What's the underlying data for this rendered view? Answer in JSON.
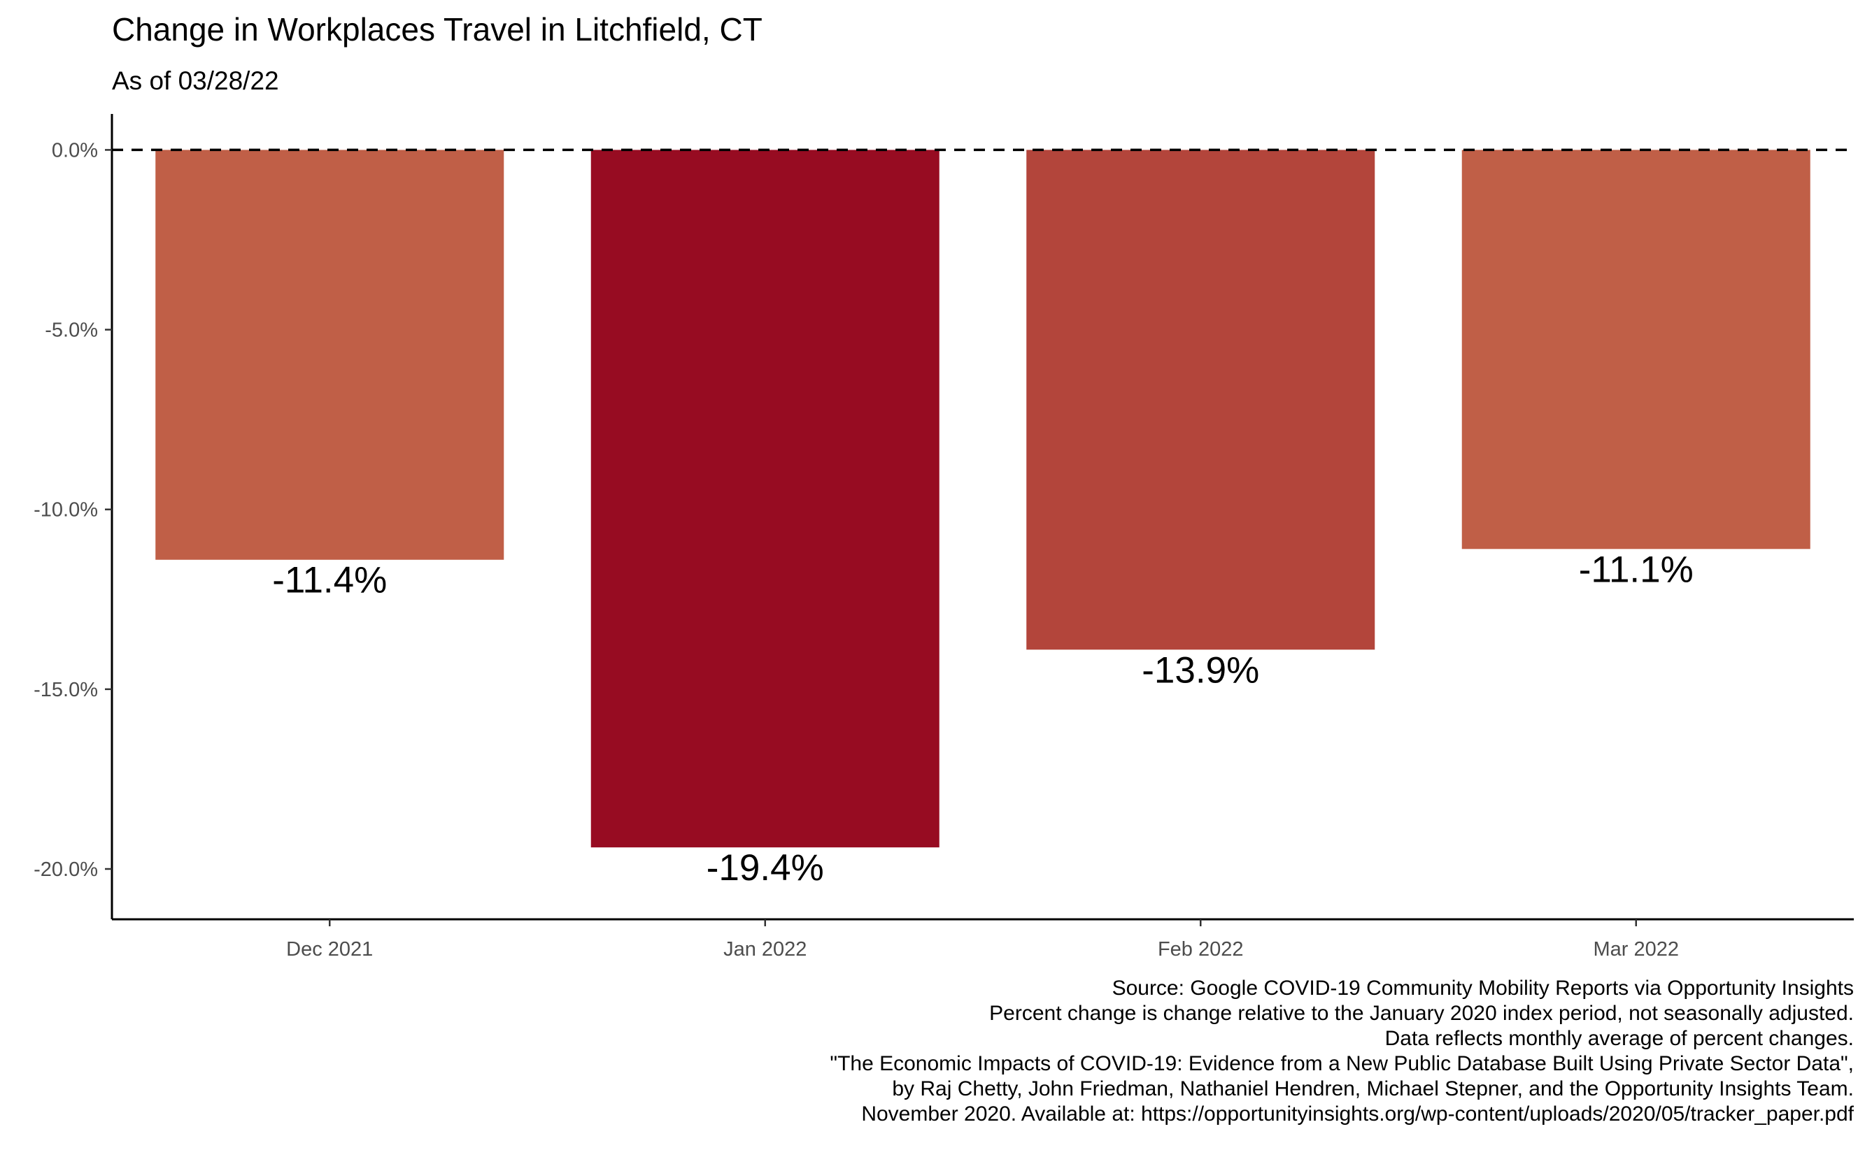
{
  "chart_data": {
    "type": "bar",
    "title": "Change in Workplaces Travel in Litchfield, CT",
    "subtitle": "As of 03/28/22",
    "xlabel": "",
    "ylabel": "",
    "categories": [
      "Dec 2021",
      "Jan 2022",
      "Feb 2022",
      "Mar 2022"
    ],
    "values": [
      -11.4,
      -19.4,
      -13.9,
      -11.1
    ],
    "data_labels": [
      "-11.4%",
      "-19.4%",
      "-13.9%",
      "-11.1%"
    ],
    "bar_colors": [
      "#c05f47",
      "#970c22",
      "#b3453b",
      "#c05f47"
    ],
    "yticks": [
      0,
      -5,
      -10,
      -15,
      -20
    ],
    "ytick_labels": [
      "0.0%",
      "-5.0%",
      "-10.0%",
      "-15.0%",
      "-20.0%"
    ],
    "ylim": [
      -21.4,
      1.0
    ],
    "reference_line": {
      "value": 0,
      "style": "dashed"
    },
    "grid": false,
    "legend": "none",
    "caption": [
      "Source: Google COVID-19 Community Mobility Reports via Opportunity Insights",
      "Percent change is change relative to the January 2020 index period, not seasonally adjusted.",
      "Data reflects monthly average of percent changes.",
      "\"The Economic Impacts of COVID-19: Evidence from a New Public Database Built Using Private Sector Data\",",
      "by Raj Chetty, John Friedman, Nathaniel Hendren, Michael Stepner, and the Opportunity Insights Team.",
      "November 2020. Available at: https://opportunityinsights.org/wp-content/uploads/2020/05/tracker_paper.pdf"
    ]
  }
}
